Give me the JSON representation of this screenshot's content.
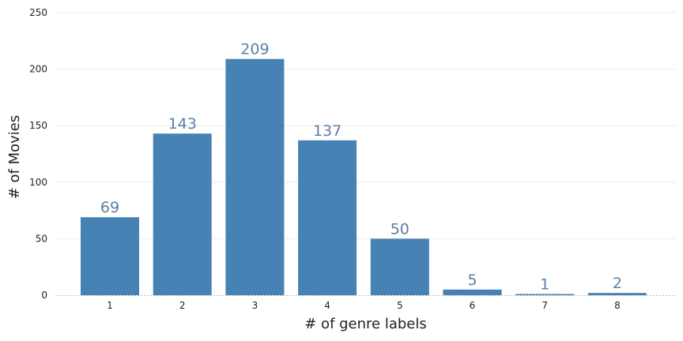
{
  "chart_data": {
    "type": "bar",
    "categories": [
      "1",
      "2",
      "3",
      "4",
      "5",
      "6",
      "7",
      "8"
    ],
    "values": [
      69,
      143,
      209,
      137,
      50,
      5,
      1,
      2
    ],
    "data_labels": [
      "69",
      "143",
      "209",
      "137",
      "50",
      "5",
      "1",
      "2"
    ],
    "title": "",
    "xlabel": "# of genre labels",
    "ylabel": "# of Movies",
    "ylim": [
      0,
      250
    ],
    "yticks": [
      0,
      50,
      100,
      150,
      200,
      250
    ],
    "ytick_labels": [
      "0",
      "50",
      "100",
      "150",
      "200",
      "250"
    ],
    "grid": "horizontal",
    "legend": "none",
    "bar_color": "#4682b4",
    "label_color": "#5b7fa6"
  }
}
